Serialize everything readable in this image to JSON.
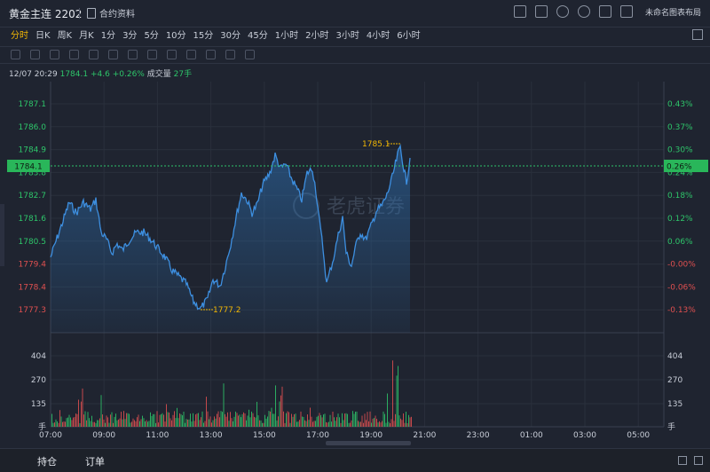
{
  "header": {
    "title": "黄金主连 2202",
    "contract_label": "合约资料",
    "layout_label": "未命名图表布局",
    "tool_icons": [
      "screenshot-icon",
      "edit-icon",
      "refresh-icon",
      "settings-icon",
      "expand-icon",
      "layout-icon"
    ]
  },
  "timeframes": [
    "分时",
    "日K",
    "周K",
    "月K",
    "1分",
    "3分",
    "5分",
    "10分",
    "15分",
    "30分",
    "45分",
    "1小时",
    "2小时",
    "3小时",
    "4小时",
    "6小时"
  ],
  "active_timeframe": "分时",
  "quote": {
    "time": "12/07 20:29",
    "price": "1784.1",
    "change": "+4.6",
    "change_pct": "+0.26%",
    "volume_label": "成交量",
    "volume": "27手"
  },
  "price_axis": [
    "1787.1",
    "1786.0",
    "1784.9",
    "1783.8",
    "1782.7",
    "1781.6",
    "1780.5",
    "1779.4",
    "1778.4",
    "1777.3"
  ],
  "pct_axis": [
    "0.43%",
    "0.37%",
    "0.30%",
    "0.24%",
    "0.18%",
    "0.12%",
    "0.06%",
    "-0.00%",
    "-0.06%",
    "-0.13%"
  ],
  "volume_axis": [
    "404",
    "270",
    "135",
    "手"
  ],
  "time_axis": [
    "07:00",
    "09:00",
    "11:00",
    "13:00",
    "15:00",
    "17:00",
    "19:00",
    "21:00",
    "23:00",
    "01:00",
    "03:00",
    "05:00"
  ],
  "current_price_tag": "1784.1",
  "current_pct_tag": "0.26%",
  "high_label": "1785.1",
  "low_label": "1777.2",
  "watermark": "老虎证券",
  "bottom_tabs": [
    "持仓",
    "订单"
  ],
  "colors": {
    "line": "#3d8fe0",
    "up": "#2ec56a",
    "down": "#e05050",
    "accent": "#f2b705",
    "tag": "#29b65a"
  }
}
